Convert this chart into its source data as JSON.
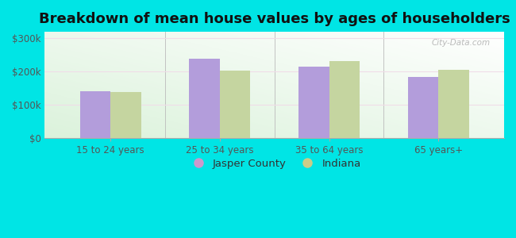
{
  "title": "Breakdown of mean house values by ages of householders",
  "categories": [
    "15 to 24 years",
    "25 to 34 years",
    "35 to 64 years",
    "65 years+"
  ],
  "jasper_county": [
    140000,
    240000,
    215000,
    183000
  ],
  "indiana": [
    138000,
    202000,
    232000,
    205000
  ],
  "jasper_color": "#b39ddb",
  "indiana_color": "#c5d5a0",
  "background_color": "#00e5e5",
  "ylim": [
    0,
    320000
  ],
  "yticks": [
    0,
    100000,
    200000,
    300000
  ],
  "legend_labels": [
    "Jasper County",
    "Indiana"
  ],
  "legend_marker_jasper": "#cc99cc",
  "legend_marker_indiana": "#cccc88",
  "title_fontsize": 13,
  "tick_fontsize": 8.5,
  "legend_fontsize": 9.5,
  "bar_width": 0.28,
  "watermark": "City-Data.com"
}
